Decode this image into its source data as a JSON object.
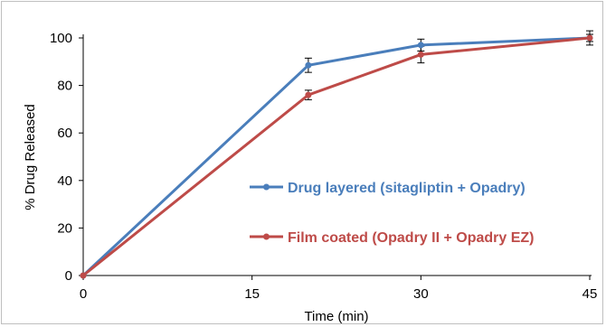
{
  "chart_data": {
    "type": "line",
    "title": "",
    "xlabel": "Time (min)",
    "ylabel": "% Drug Released",
    "xlim": [
      0,
      45
    ],
    "ylim": [
      0,
      100
    ],
    "xticks": [
      0,
      15,
      30,
      45
    ],
    "yticks": [
      0,
      20,
      40,
      60,
      80,
      100
    ],
    "grid": false,
    "legend_position": "right",
    "x": [
      0,
      20,
      30,
      45
    ],
    "series": [
      {
        "name": "Drug layered (sitagliptin + Opadry)",
        "color": "#4a7ebb",
        "values": [
          0,
          88.5,
          97,
          100
        ],
        "error": [
          0,
          3,
          2.5,
          3
        ]
      },
      {
        "name": "Film coated (Opadry II + Opadry EZ)",
        "color": "#be4b48",
        "values": [
          0,
          76,
          93,
          100
        ],
        "error": [
          0,
          2,
          3.5,
          1.5
        ]
      }
    ]
  }
}
